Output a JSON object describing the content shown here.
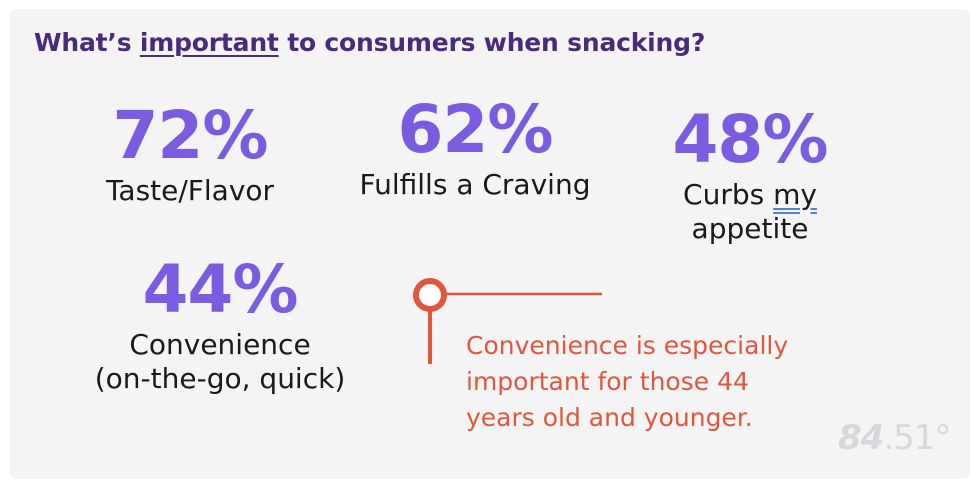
{
  "title": {
    "prefix": "What’s ",
    "emphasis": "important",
    "suffix": " to consumers when snacking?"
  },
  "chart_data": {
    "type": "table",
    "title": "What’s important to consumers when snacking?",
    "items": [
      {
        "value": "72%",
        "label_lines": [
          "Taste/Flavor"
        ]
      },
      {
        "value": "62%",
        "label_lines": [
          "Fulfills a Craving"
        ]
      },
      {
        "value": "48%",
        "label_pre": "Curbs ",
        "label_underlined": "my",
        "label_lines": [
          "Curbs my",
          "appetite"
        ]
      },
      {
        "value": "44%",
        "label_lines": [
          "Convenience",
          "(on-the-go, quick)"
        ]
      }
    ],
    "values_percent": [
      72,
      62,
      48,
      44
    ]
  },
  "callout": {
    "lines": [
      "Convenience is especially",
      "important for those 44",
      "years old and younger."
    ],
    "color": "#e0563f"
  },
  "logo": {
    "bold": "84",
    "light": ".51°"
  },
  "colors": {
    "title": "#4b2a7b",
    "value": "#7b5ce0",
    "accent": "#e0563f"
  }
}
